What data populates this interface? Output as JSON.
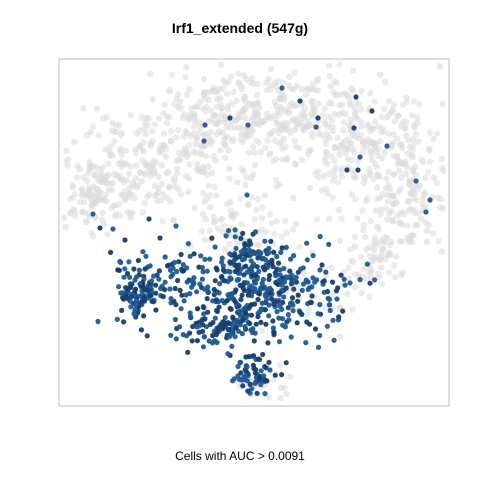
{
  "chart_data": {
    "type": "scatter",
    "title": "Irf1_extended (547g)",
    "xlabel": "Cells with AUC > 0.0091",
    "ylabel": "",
    "grid": false,
    "legend": "none",
    "colors": {
      "positive": "#1f5a96",
      "positive_dark": "#163f6e",
      "background": "#dadada"
    },
    "series": [
      {
        "values": [
          {
            "x": 3,
            "y": 2
          },
          {
            "x": 25,
            "y": 3
          },
          {
            "x": 17,
            "y": 4
          },
          {
            "x": 27,
            "y": 5
          },
          {
            "x": 28,
            "y": 10
          },
          {
            "x": 33,
            "y": 20
          },
          {
            "x": 40,
            "y": 15
          },
          {
            "x": 46,
            "y": 20
          }
        ]
      }
    ]
  }
}
